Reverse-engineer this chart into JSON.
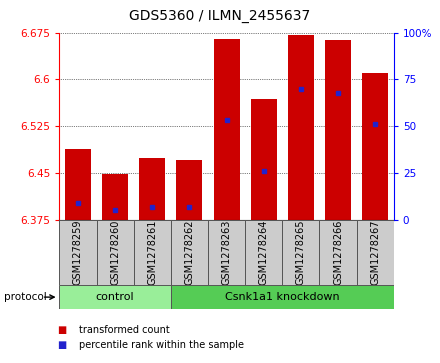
{
  "title": "GDS5360 / ILMN_2455637",
  "samples": [
    "GSM1278259",
    "GSM1278260",
    "GSM1278261",
    "GSM1278262",
    "GSM1278263",
    "GSM1278264",
    "GSM1278265",
    "GSM1278266",
    "GSM1278267"
  ],
  "bar_tops": [
    6.488,
    6.449,
    6.474,
    6.47,
    6.665,
    6.568,
    6.672,
    6.663,
    6.61
  ],
  "bar_bottom": 6.375,
  "blue_positions": [
    6.402,
    6.39,
    6.395,
    6.395,
    6.535,
    6.453,
    6.585,
    6.578,
    6.528
  ],
  "ymin": 6.375,
  "ymax": 6.675,
  "yticks": [
    6.375,
    6.45,
    6.525,
    6.6,
    6.675
  ],
  "right_yticks": [
    0,
    25,
    50,
    75,
    100
  ],
  "right_yticklabels": [
    "0",
    "25",
    "50",
    "75",
    "100%"
  ],
  "control_count": 3,
  "knockdown_count": 6,
  "control_label": "control",
  "knockdown_label": "Csnk1a1 knockdown",
  "protocol_label": "protocol",
  "bar_color": "#cc0000",
  "blue_color": "#2222cc",
  "control_bg": "#99ee99",
  "knockdown_bg": "#55cc55",
  "label_bg": "#cccccc",
  "legend_red_label": "transformed count",
  "legend_blue_label": "percentile rank within the sample",
  "bar_width": 0.7
}
